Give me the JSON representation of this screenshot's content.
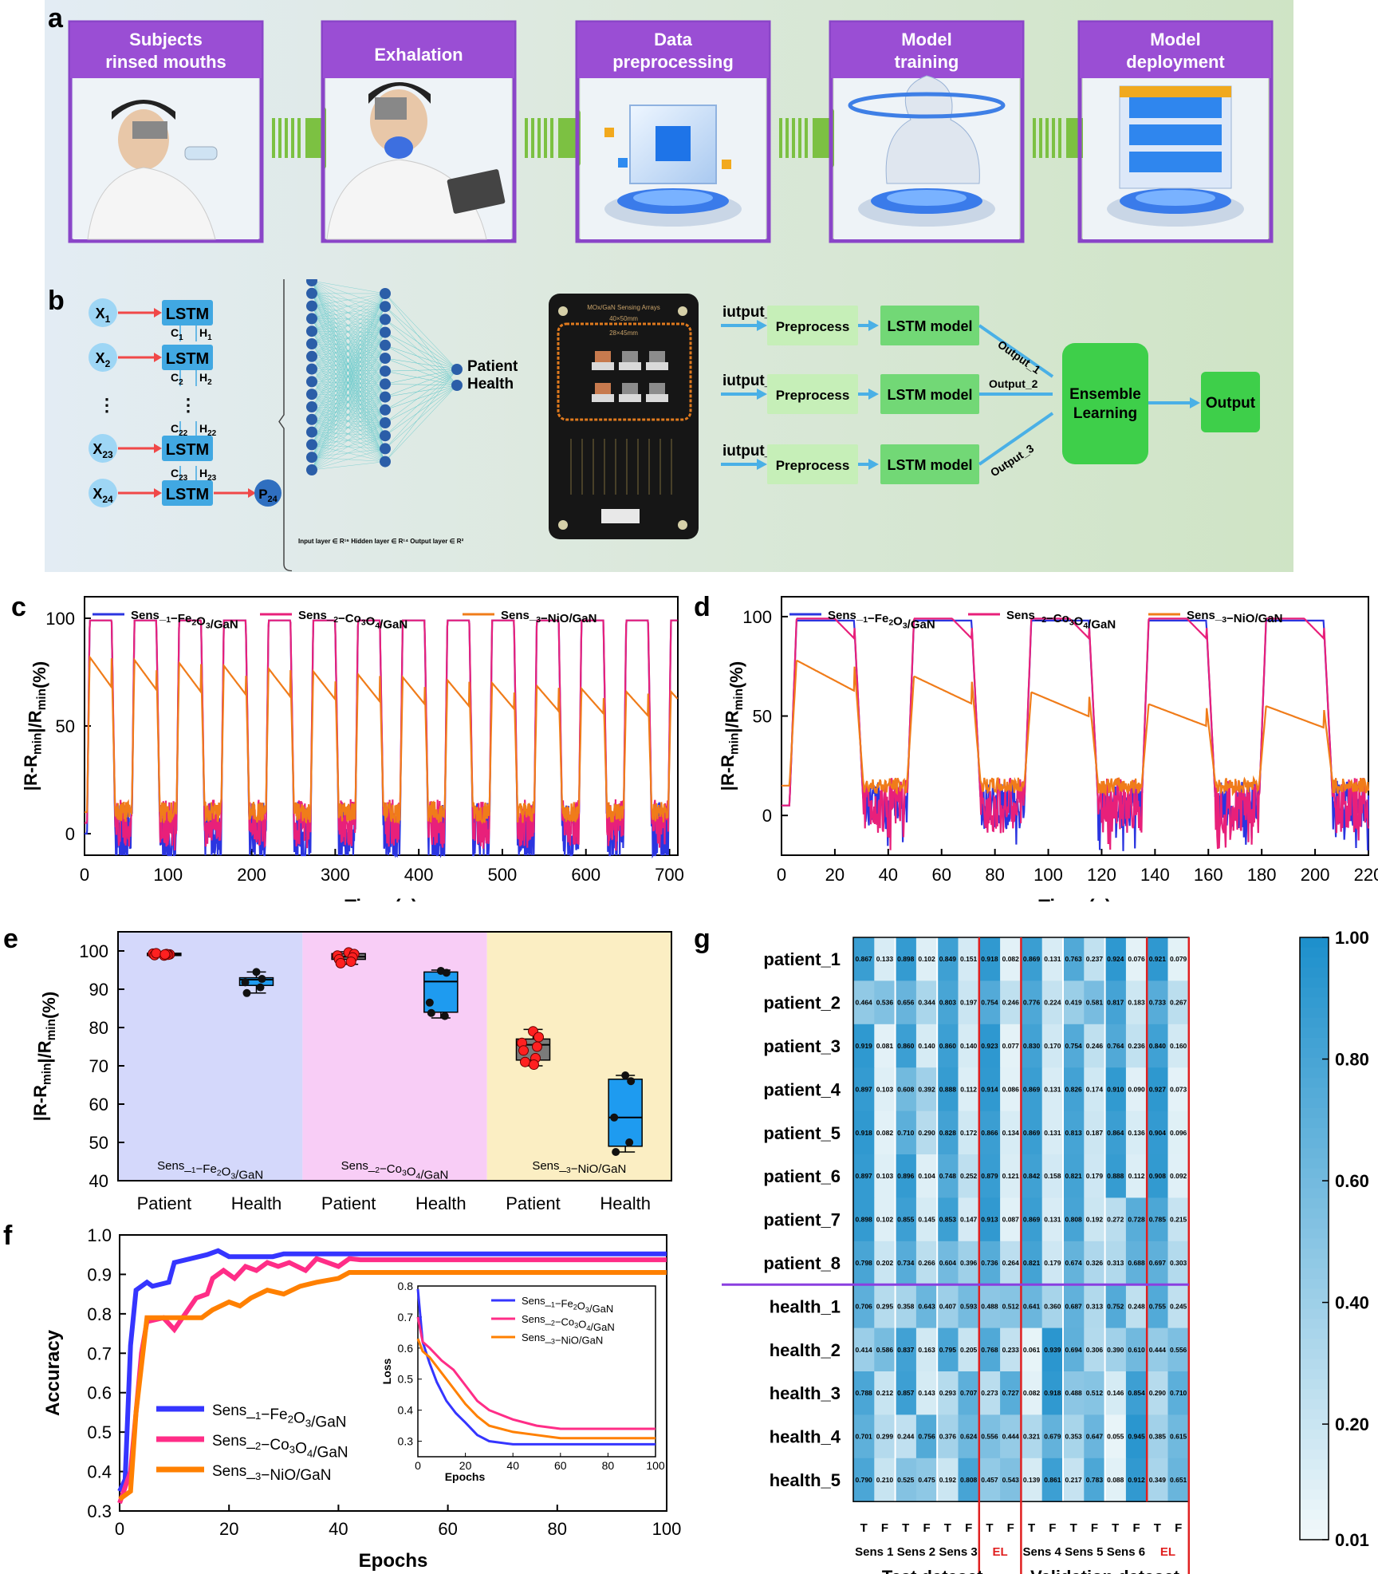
{
  "panel_letters": {
    "a": "a",
    "b": "b",
    "c": "c",
    "d": "d",
    "e": "e",
    "f": "f",
    "g": "g"
  },
  "workflow": {
    "steps": [
      {
        "title": "Subjects\nrinsed mouths"
      },
      {
        "title": "Exhalation"
      },
      {
        "title": "Data\npreprocessing"
      },
      {
        "title": "Model\ntraining"
      },
      {
        "title": "Model\ndeployment"
      }
    ]
  },
  "architecture": {
    "lstm_label": "LSTM",
    "x_labels": [
      "X1",
      "X2",
      "X23",
      "X24"
    ],
    "c_labels": [
      "C1",
      "C2",
      "C22",
      "C23"
    ],
    "h_labels": [
      "H1",
      "H2",
      "H22",
      "H23"
    ],
    "dots": "⋮",
    "p_label": "P24",
    "nn_output": "Patient\nHealth",
    "nn_caption": "Input layer ∈ R¹⁶   Hidden layer ∈ R¹⁴   Output layer ∈ R²",
    "board_title": "MOx/GaN Sensing Arrays",
    "board_dim1": "40×50mm",
    "board_dim2": "28×45mm",
    "inputs": [
      "iutput_1",
      "iutput_2",
      "iutput_3"
    ],
    "preprocess": "Preprocess",
    "lstm_model": "LSTM model",
    "outputs": [
      "Output_1",
      "Output_2",
      "Output_3"
    ],
    "ensemble": "Ensemble\nLearning",
    "final": "Output"
  },
  "chart_data": [
    {
      "id": "c",
      "type": "line",
      "xlabel": "Time (s)",
      "ylabel": "|R-Rmin|/Rmin(%)",
      "xlim": [
        0,
        710
      ],
      "ylim": [
        -10,
        110
      ],
      "xticks": [
        0,
        100,
        200,
        300,
        400,
        500,
        600,
        700
      ],
      "yticks": [
        0,
        50,
        100
      ],
      "cycles": {
        "count": 13,
        "period_s": 53.5,
        "start_s": 3
      },
      "series": [
        {
          "name": "Sens_1−Fe2O3/GaN",
          "color": "#2b35e0",
          "peak": 99,
          "baseline": 0
        },
        {
          "name": "Sens_2−Co3O4/GaN",
          "color": "#e8207a",
          "peak": 99,
          "baseline": 5
        },
        {
          "name": "Sens_3−NiO/GaN",
          "color": "#f07c1a",
          "peak_start": 82,
          "peak_end": 66,
          "baseline": 10
        }
      ]
    },
    {
      "id": "d",
      "type": "line",
      "xlabel": "Time (s)",
      "ylabel": "|R-Rmin|/Rmin(%)",
      "xlim": [
        0,
        220
      ],
      "ylim": [
        -20,
        110
      ],
      "xticks": [
        0,
        20,
        40,
        60,
        80,
        100,
        120,
        140,
        160,
        180,
        200,
        220
      ],
      "yticks": [
        0,
        50,
        100
      ],
      "cycles": {
        "count": 5,
        "period_s": 44,
        "start_s": 3
      },
      "series": [
        {
          "name": "Sens_1−Fe2O3/GaN",
          "color": "#2b35e0",
          "peak": 98,
          "baseline": 5
        },
        {
          "name": "Sens_2−Co3O4/GaN",
          "color": "#e8207a",
          "peak": 99,
          "baseline": 5
        },
        {
          "name": "Sens_3−NiO/GaN",
          "color": "#f07c1a",
          "peaks": [
            78,
            70,
            62,
            56,
            55
          ],
          "baseline": 15
        }
      ]
    },
    {
      "id": "e",
      "type": "box",
      "ylabel": "|R-Rmin|/Rmin(%)",
      "ylim": [
        40,
        105
      ],
      "yticks": [
        40,
        50,
        60,
        70,
        80,
        90,
        100
      ],
      "categories": [
        "Patient",
        "Health",
        "Patient",
        "Health",
        "Patient",
        "Health"
      ],
      "groups": [
        {
          "name": "Sens_1−Fe2O3/GaN",
          "bg": "#d4d8fb"
        },
        {
          "name": "Sens_2−Co3O4/GaN",
          "bg": "#f8cdf6"
        },
        {
          "name": "Sens_3−NiO/GaN",
          "bg": "#fbeec3"
        }
      ],
      "boxes": [
        {
          "q1": 98.8,
          "median": 99.1,
          "q3": 99.4,
          "min": 98.5,
          "max": 99.7,
          "color": "#ff3b3b",
          "points": [
            98.8,
            99.1,
            99.3,
            99.0,
            98.9,
            99.2,
            99.4,
            99.1
          ]
        },
        {
          "q1": 91,
          "median": 92.5,
          "q3": 93,
          "min": 89,
          "max": 94.5,
          "color": "#1a96e8",
          "points": [
            94.5,
            92.7,
            91.8,
            90.5,
            89
          ]
        },
        {
          "q1": 97.8,
          "median": 98.5,
          "q3": 99.3,
          "min": 96.5,
          "max": 99.8,
          "color": "#ff3b3b",
          "points": [
            99.6,
            99.2,
            98.8,
            98.3,
            97.8,
            97.2,
            96.8
          ]
        },
        {
          "q1": 84,
          "median": 92,
          "q3": 94.5,
          "min": 82.5,
          "max": 95,
          "color": "#1a96e8",
          "points": [
            94.8,
            94.3,
            86.5,
            83,
            83.8
          ]
        },
        {
          "q1": 71.5,
          "median": 75.5,
          "q3": 77,
          "min": 70,
          "max": 79.5,
          "color": "#ff3b3b",
          "points": [
            79,
            77.5,
            76,
            75,
            74,
            72,
            71,
            70.3
          ]
        },
        {
          "q1": 49,
          "median": 56.5,
          "q3": 66.5,
          "min": 47.5,
          "max": 67.5,
          "color": "#1a96e8",
          "points": [
            67.5,
            66,
            56.5,
            50,
            47.5
          ]
        }
      ]
    },
    {
      "id": "f",
      "type": "line",
      "xlabel": "Epochs",
      "ylabel": "Accuracy",
      "xlim": [
        0,
        100
      ],
      "ylim": [
        0.3,
        1.0
      ],
      "xticks": [
        0,
        20,
        40,
        60,
        80,
        100
      ],
      "yticks": [
        0.3,
        0.4,
        0.5,
        0.6,
        0.7,
        0.8,
        0.9,
        1.0
      ],
      "series": [
        {
          "name": "Sens_1−Fe2O3/GaN",
          "color": "#3535ff",
          "final": 0.952
        },
        {
          "name": "Sens_2−Co3O4/GaN",
          "color": "#ff2d87",
          "final": 0.937
        },
        {
          "name": "Sens_3−NiO/GaN",
          "color": "#ff8000",
          "final": 0.905
        }
      ],
      "inset": {
        "xlabel": "Epochs",
        "ylabel": "Loss",
        "xlim": [
          0,
          100
        ],
        "ylim": [
          0.25,
          0.8
        ],
        "xticks": [
          0,
          20,
          40,
          60,
          80,
          100
        ],
        "yticks": [
          0.3,
          0.4,
          0.5,
          0.6,
          0.7,
          0.8
        ],
        "finals": [
          0.29,
          0.34,
          0.31
        ]
      }
    },
    {
      "id": "g",
      "type": "heatmap",
      "rows": [
        "patient_1",
        "patient_2",
        "patient_3",
        "patient_4",
        "patient_5",
        "patient_6",
        "patient_7",
        "patient_8",
        "health_1",
        "health_2",
        "health_3",
        "health_4",
        "health_5"
      ],
      "columns": [
        "T",
        "F",
        "T",
        "F",
        "T",
        "F",
        "T",
        "F",
        "T",
        "F",
        "T",
        "F",
        "T",
        "F",
        "T",
        "F"
      ],
      "groups": [
        "Sens 1",
        "Sens 2",
        "Sens 3",
        "EL",
        "Sens 4",
        "Sens 5",
        "Sens 6",
        "EL"
      ],
      "datasets": [
        "Test dataset",
        "Validation dataset"
      ],
      "colorbar": {
        "min": 0.01,
        "max": 1.0,
        "ticks": [
          "1.00",
          "0.80",
          "0.60",
          "0.40",
          "0.20",
          "0.01"
        ]
      },
      "values": [
        [
          0.867,
          0.133,
          0.898,
          0.102,
          0.849,
          0.151,
          0.918,
          0.082,
          0.869,
          0.131,
          0.763,
          0.237,
          0.924,
          0.076,
          0.921,
          0.079
        ],
        [
          0.464,
          0.536,
          0.656,
          0.344,
          0.803,
          0.197,
          0.754,
          0.246,
          0.776,
          0.224,
          0.419,
          0.581,
          0.817,
          0.183,
          0.733,
          0.267
        ],
        [
          0.919,
          0.081,
          0.86,
          0.14,
          0.86,
          0.14,
          0.923,
          0.077,
          0.83,
          0.17,
          0.754,
          0.246,
          0.764,
          0.236,
          0.84,
          0.16
        ],
        [
          0.897,
          0.103,
          0.608,
          0.392,
          0.888,
          0.112,
          0.914,
          0.086,
          0.869,
          0.131,
          0.826,
          0.174,
          0.91,
          0.09,
          0.927,
          0.073
        ],
        [
          0.918,
          0.082,
          0.71,
          0.29,
          0.828,
          0.172,
          0.866,
          0.134,
          0.869,
          0.131,
          0.813,
          0.187,
          0.864,
          0.136,
          0.904,
          0.096
        ],
        [
          0.897,
          0.103,
          0.896,
          0.104,
          0.748,
          0.252,
          0.879,
          0.121,
          0.842,
          0.158,
          0.821,
          0.179,
          0.888,
          0.112,
          0.908,
          0.092
        ],
        [
          0.898,
          0.102,
          0.855,
          0.145,
          0.853,
          0.147,
          0.913,
          0.087,
          0.869,
          0.131,
          0.808,
          0.192,
          0.272,
          0.728,
          0.785,
          0.215
        ],
        [
          0.798,
          0.202,
          0.734,
          0.266,
          0.604,
          0.396,
          0.736,
          0.264,
          0.821,
          0.179,
          0.674,
          0.326,
          0.313,
          0.688,
          0.697,
          0.303
        ],
        [
          0.706,
          0.295,
          0.358,
          0.643,
          0.407,
          0.593,
          0.488,
          0.512,
          0.641,
          0.36,
          0.687,
          0.313,
          0.752,
          0.248,
          0.755,
          0.245
        ],
        [
          0.414,
          0.586,
          0.837,
          0.163,
          0.795,
          0.205,
          0.768,
          0.233,
          0.061,
          0.939,
          0.694,
          0.306,
          0.39,
          0.61,
          0.444,
          0.556
        ],
        [
          0.788,
          0.212,
          0.857,
          0.143,
          0.293,
          0.707,
          0.273,
          0.727,
          0.082,
          0.918,
          0.488,
          0.512,
          0.146,
          0.854,
          0.29,
          0.71
        ],
        [
          0.701,
          0.299,
          0.244,
          0.756,
          0.376,
          0.624,
          0.556,
          0.444,
          0.321,
          0.679,
          0.353,
          0.647,
          0.055,
          0.945,
          0.385,
          0.615
        ],
        [
          0.79,
          0.21,
          0.525,
          0.475,
          0.192,
          0.808,
          0.457,
          0.543,
          0.139,
          0.861,
          0.217,
          0.783,
          0.088,
          0.912,
          0.349,
          0.651
        ]
      ]
    }
  ]
}
